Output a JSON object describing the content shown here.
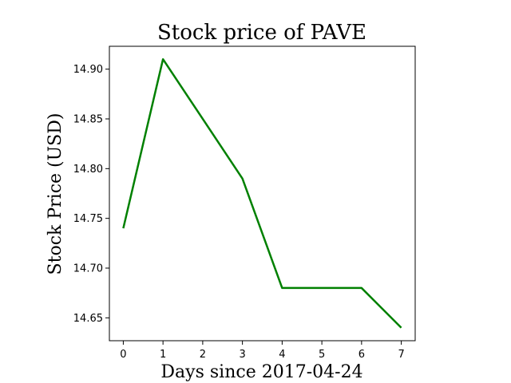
{
  "chart_data": {
    "type": "line",
    "title": "Stock price of PAVE",
    "xlabel": "Days since 2017-04-24",
    "ylabel": "Stock Price (USD)",
    "xlim": [
      -0.35,
      7.35
    ],
    "ylim": [
      14.627,
      14.923
    ],
    "x_ticks": [
      0,
      1,
      2,
      3,
      4,
      5,
      6,
      7
    ],
    "y_ticks": [
      14.65,
      14.7,
      14.75,
      14.8,
      14.85,
      14.9
    ],
    "y_tick_labels": [
      "14.65",
      "14.70",
      "14.75",
      "14.80",
      "14.85",
      "14.90"
    ],
    "grid": false,
    "series": [
      {
        "color": "#008000",
        "x": [
          0,
          1,
          3,
          4,
          6,
          7
        ],
        "y": [
          14.74,
          14.91,
          14.79,
          14.68,
          14.68,
          14.64
        ]
      }
    ]
  }
}
